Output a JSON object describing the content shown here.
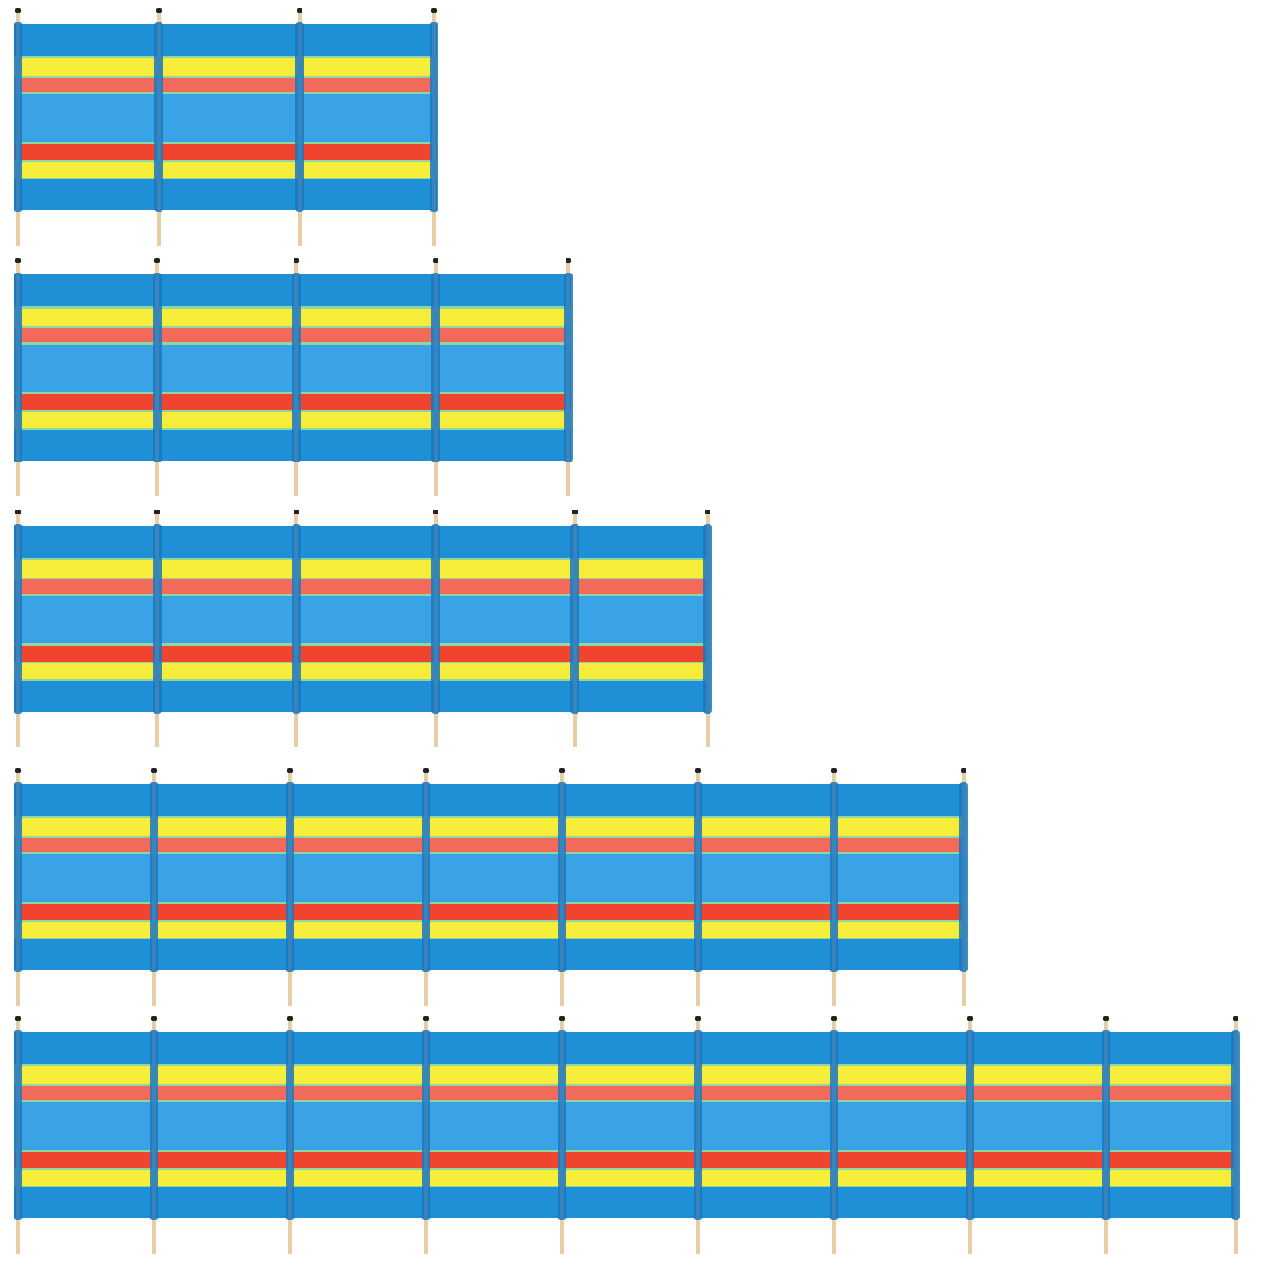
{
  "windbreaks": [
    {
      "panels": 3
    },
    {
      "panels": 4
    },
    {
      "panels": 5
    },
    {
      "panels": 7
    },
    {
      "panels": 9
    }
  ],
  "colors": {
    "blue": "#1f8fd6",
    "light_blue": "#3aa3e6",
    "yellow": "#f6ec3a",
    "salmon": "#f26a5a",
    "red": "#f0442f",
    "green_edge": "#8fd6a0",
    "pole_wood": "#e6cfa4",
    "pole_cap": "#222222",
    "pole_sleeve": "#1a78bf"
  }
}
